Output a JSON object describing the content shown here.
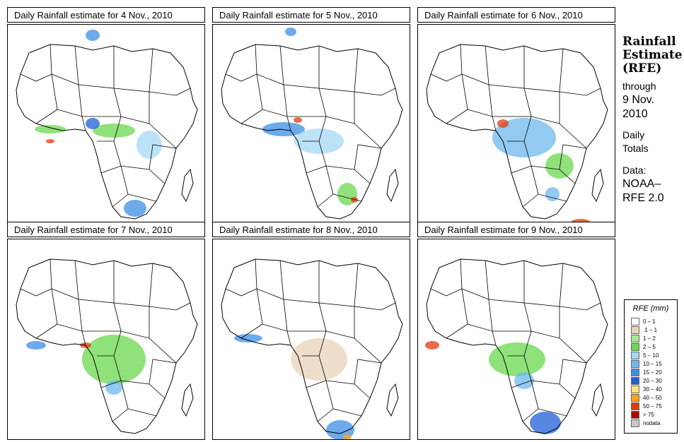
{
  "panels": [
    {
      "title": "Daily Rainfall estimate for  4 Nov., 2010"
    },
    {
      "title": "Daily Rainfall estimate for  5 Nov., 2010"
    },
    {
      "title": "Daily Rainfall estimate for  6 Nov., 2010"
    },
    {
      "title": "Daily Rainfall estimate for  7 Nov., 2010"
    },
    {
      "title": "Daily Rainfall estimate for  8 Nov., 2010"
    },
    {
      "title": "Daily Rainfall estimate for  9 Nov., 2010"
    }
  ],
  "side": {
    "heading1": "Rainfall",
    "heading2": "Estimate",
    "heading3": "(RFE)",
    "through": "through",
    "date1": "9 Nov.",
    "date2": "2010",
    "daily": "Daily",
    "totals": "Totals",
    "data": "Data:",
    "source1": "NOAA–",
    "source2": "RFE 2.0"
  },
  "legend": {
    "title": "RFE (mm)",
    "items": [
      {
        "label": "0 – 1",
        "color": "#ffffff"
      },
      {
        "label": ".1 – 1",
        "color": "#e8d2b6"
      },
      {
        "label": "1 – 2",
        "color": "#a8e890"
      },
      {
        "label": "2 – 5",
        "color": "#6ad84e"
      },
      {
        "label": "5 – 10",
        "color": "#a6d8f4"
      },
      {
        "label": "10 – 15",
        "color": "#6eb8ee"
      },
      {
        "label": "15 – 20",
        "color": "#3c8ee6"
      },
      {
        "label": "20 – 30",
        "color": "#1f5fd8"
      },
      {
        "label": "30 – 40",
        "color": "#ffe37a"
      },
      {
        "label": "40 – 50",
        "color": "#ffa020"
      },
      {
        "label": "50 – 75",
        "color": "#e23a10"
      },
      {
        "label": "> 75",
        "color": "#b40000"
      },
      {
        "label": "nodata",
        "color": "#c8c8c8"
      }
    ]
  }
}
